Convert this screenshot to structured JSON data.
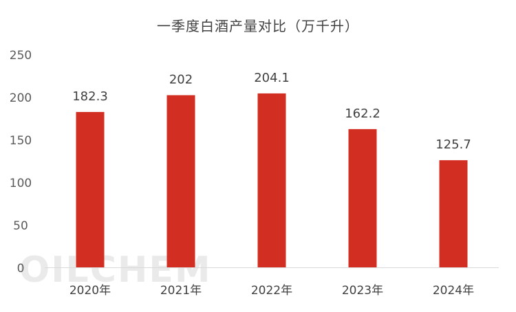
{
  "chart_data": {
    "type": "bar",
    "title": "一季度白酒产量对比（万千升）",
    "categories": [
      "2020年",
      "2021年",
      "2022年",
      "2023年",
      "2024年"
    ],
    "values": [
      182.3,
      202,
      204.1,
      162.2,
      125.7
    ],
    "value_labels": [
      "182.3",
      "202",
      "204.1",
      "162.2",
      "125.7"
    ],
    "yticks": [
      "0",
      "50",
      "100",
      "150",
      "200",
      "250"
    ],
    "ylim": [
      0,
      250
    ],
    "grid": false,
    "bar_color": "#D22E22",
    "watermark": "OILCHEM"
  }
}
